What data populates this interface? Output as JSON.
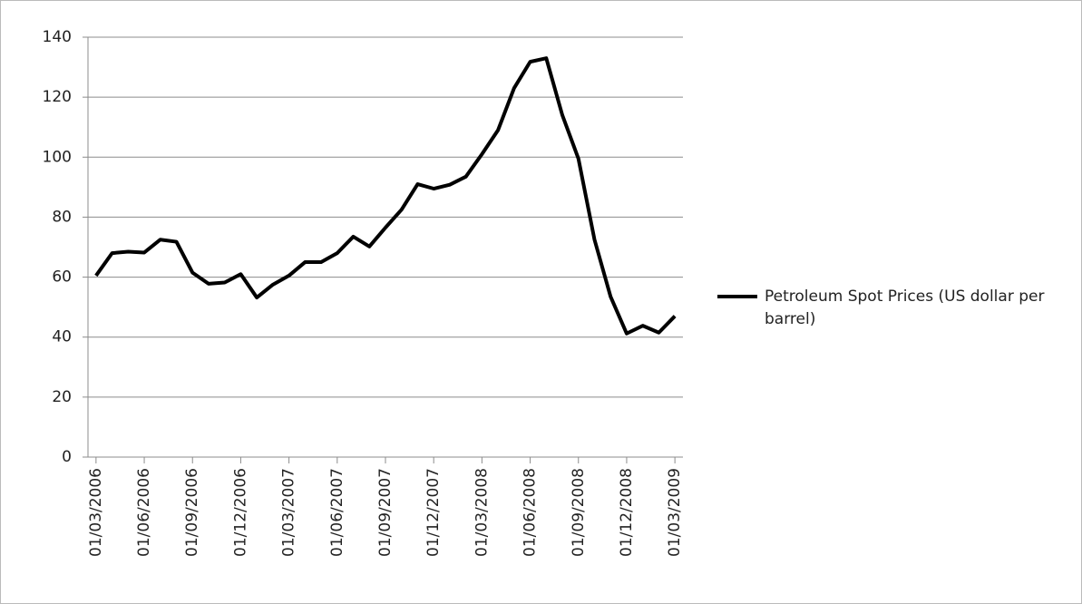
{
  "chart_data": {
    "type": "line",
    "categories": [
      "01/03/2006",
      null,
      null,
      "01/06/2006",
      null,
      null,
      "01/09/2006",
      null,
      null,
      "01/12/2006",
      null,
      null,
      "01/03/2007",
      null,
      null,
      "01/06/2007",
      null,
      null,
      "01/09/2007",
      null,
      null,
      "01/12/2007",
      null,
      null,
      "01/03/2008",
      null,
      null,
      "01/06/2008",
      null,
      null,
      "01/09/2008",
      null,
      null,
      "01/12/2008",
      null,
      null,
      "01/03/2009"
    ],
    "series": [
      {
        "name": "Petroleum Spot Prices (US dollar per barrel)",
        "color": "#000000",
        "values": [
          60.5,
          68,
          68.5,
          68.2,
          72.5,
          71.8,
          61.5,
          57.8,
          58.2,
          61,
          53.2,
          57.5,
          60.5,
          65,
          65,
          68,
          73.5,
          70.2,
          76.5,
          82.5,
          91,
          89.5,
          90.8,
          93.5,
          101,
          109,
          123,
          131.8,
          133,
          114,
          99.5,
          72.5,
          53.5,
          41.2,
          43.8,
          41.5,
          47
        ]
      }
    ],
    "ylim": [
      0,
      140
    ],
    "yticks": [
      0,
      20,
      40,
      60,
      80,
      100,
      120,
      140
    ],
    "grid": true,
    "legend": "right"
  }
}
